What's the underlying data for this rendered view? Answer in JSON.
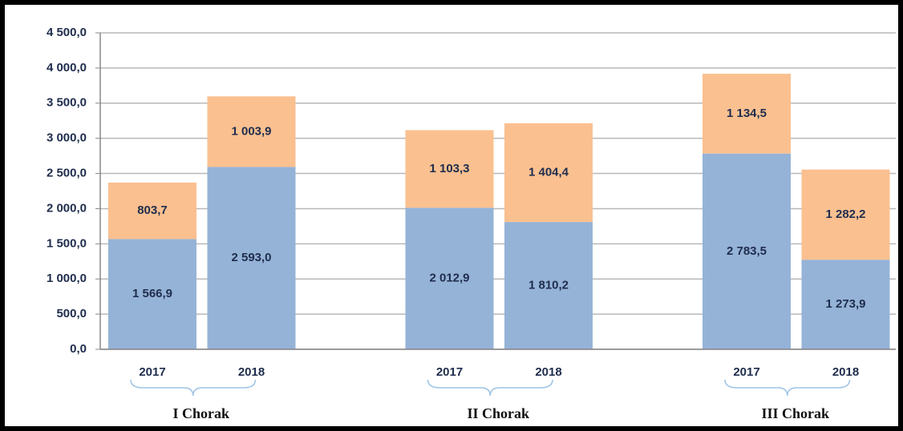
{
  "chart_data": {
    "type": "stacked-bar",
    "groups": [
      "I  Chorak",
      "II Chorak",
      "III Chorak"
    ],
    "categories": [
      "2017",
      "2018",
      "2017",
      "2018",
      "2017",
      "2018"
    ],
    "series": [
      {
        "color": "#95b3d7",
        "values": [
          1566.9,
          2593.0,
          2012.9,
          1810.2,
          2783.5,
          1273.9
        ],
        "value_labels": [
          "1 566,9",
          "2 593,0",
          "2 012,9",
          "1 810,2",
          "2 783,5",
          "1 273,9"
        ]
      },
      {
        "color": "#fac090",
        "values": [
          803.7,
          1003.9,
          1103.3,
          1404.4,
          1134.5,
          1282.2
        ],
        "value_labels": [
          "803,7",
          "1 003,9",
          "1 103,3",
          "1 404,4",
          "1 134,5",
          "1 282,2"
        ]
      }
    ],
    "ylim": [
      0,
      4500
    ],
    "yticks": [
      {
        "value": 0,
        "label": "0,0"
      },
      {
        "value": 500,
        "label": "500,0"
      },
      {
        "value": 1000,
        "label": "1 000,0"
      },
      {
        "value": 1500,
        "label": "1 500,0"
      },
      {
        "value": 2000,
        "label": "2 000,0"
      },
      {
        "value": 2500,
        "label": "2 500,0"
      },
      {
        "value": 3000,
        "label": "3 000,0"
      },
      {
        "value": 3500,
        "label": "3 500,0"
      },
      {
        "value": 4000,
        "label": "4 000,0"
      },
      {
        "value": 4500,
        "label": "4 500,0"
      }
    ],
    "grid": true
  }
}
